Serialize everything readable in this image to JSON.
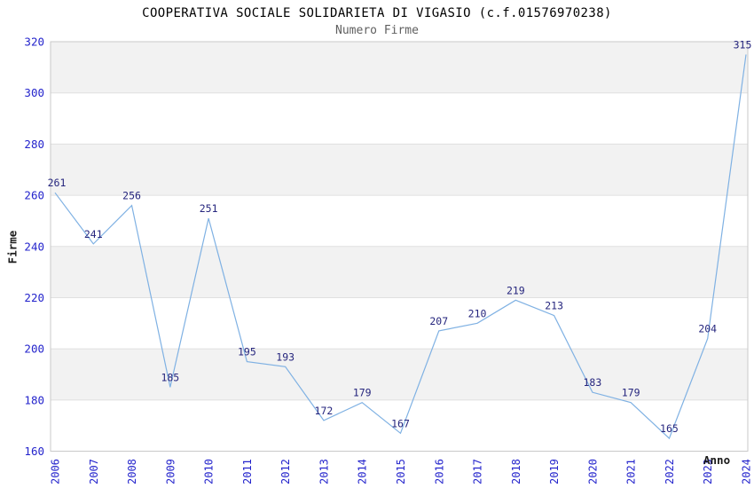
{
  "page": {
    "title": "COOPERATIVA SOCIALE SOLIDARIETA DI VIGASIO (c.f.01576970238)",
    "subtitle": "Numero Firme"
  },
  "chart_data": {
    "type": "line",
    "title": "COOPERATIVA SOCIALE SOLIDARIETA DI VIGASIO (c.f.01576970238)",
    "subtitle": "Numero Firme",
    "xlabel": "Anno",
    "ylabel": "Firme",
    "categories": [
      "2006",
      "2007",
      "2008",
      "2009",
      "2010",
      "2011",
      "2012",
      "2013",
      "2014",
      "2015",
      "2016",
      "2017",
      "2018",
      "2019",
      "2020",
      "2021",
      "2022",
      "2023",
      "2024"
    ],
    "values": [
      261,
      241,
      256,
      185,
      251,
      195,
      193,
      172,
      179,
      167,
      207,
      210,
      219,
      213,
      183,
      179,
      165,
      204,
      315
    ],
    "ylim": [
      160,
      320
    ],
    "ytick_step": 20,
    "yticks": [
      160,
      180,
      200,
      220,
      240,
      260,
      280,
      300,
      320
    ],
    "grid": "horizontal alternating bands",
    "legend_position": "none",
    "point_labels_visible": true,
    "colors": {
      "line": "#7FB1E3",
      "point_label": "#26267E",
      "tick_label": "#2424CC",
      "band_gray": "#F2F2F2",
      "band_white": "#FFFFFF",
      "gridline": "#E0E0E0",
      "plot_border": "#C9C9C9",
      "title": "#000000",
      "subtitle": "#5F5F5F",
      "axis_title": "#1A1A1A"
    }
  }
}
